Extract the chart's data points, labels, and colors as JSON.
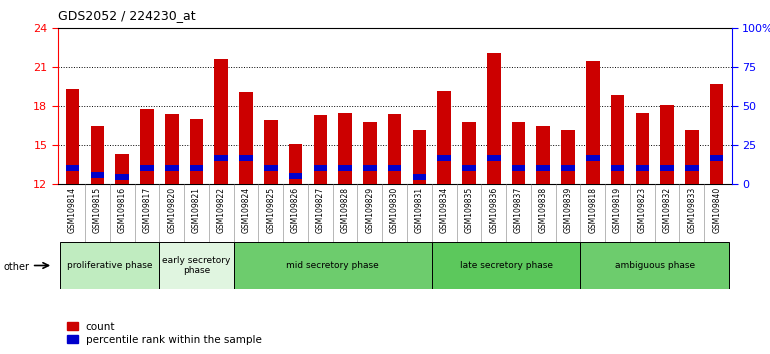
{
  "title": "GDS2052 / 224230_at",
  "samples": [
    "GSM109814",
    "GSM109815",
    "GSM109816",
    "GSM109817",
    "GSM109820",
    "GSM109821",
    "GSM109822",
    "GSM109824",
    "GSM109825",
    "GSM109826",
    "GSM109827",
    "GSM109828",
    "GSM109829",
    "GSM109830",
    "GSM109831",
    "GSM109834",
    "GSM109835",
    "GSM109836",
    "GSM109837",
    "GSM109838",
    "GSM109839",
    "GSM109818",
    "GSM109819",
    "GSM109823",
    "GSM109832",
    "GSM109833",
    "GSM109840"
  ],
  "counts": [
    19.3,
    16.5,
    14.3,
    17.8,
    17.4,
    17.0,
    21.6,
    19.1,
    16.9,
    15.1,
    17.3,
    17.5,
    16.8,
    17.4,
    16.2,
    19.2,
    16.8,
    22.1,
    16.8,
    16.5,
    16.2,
    21.5,
    18.9,
    17.5,
    18.1,
    16.2,
    19.7
  ],
  "blue_bar_bottom": [
    13.0,
    12.5,
    12.3,
    13.0,
    13.0,
    13.0,
    13.8,
    13.8,
    13.0,
    12.4,
    13.0,
    13.0,
    13.0,
    13.0,
    12.3,
    13.8,
    13.0,
    13.8,
    13.0,
    13.0,
    13.0,
    13.8,
    13.0,
    13.0,
    13.0,
    13.0,
    13.8
  ],
  "blue_bar_height": 0.45,
  "phases": [
    {
      "label": "proliferative phase",
      "start": 0,
      "end": 4,
      "color": "#c0ecc0"
    },
    {
      "label": "early secretory\nphase",
      "start": 4,
      "end": 7,
      "color": "#e0f5e0"
    },
    {
      "label": "mid secretory phase",
      "start": 7,
      "end": 15,
      "color": "#6dcc6d"
    },
    {
      "label": "late secretory phase",
      "start": 15,
      "end": 21,
      "color": "#5cc85c"
    },
    {
      "label": "ambiguous phase",
      "start": 21,
      "end": 27,
      "color": "#6dcc6d"
    }
  ],
  "ylim_left": [
    12,
    24
  ],
  "ylim_right": [
    0,
    100
  ],
  "yticks_left": [
    12,
    15,
    18,
    21,
    24
  ],
  "yticks_right": [
    0,
    25,
    50,
    75,
    100
  ],
  "bar_width": 0.55,
  "bar_color_count": "#cc0000",
  "bar_color_percentile": "#0000cc",
  "plot_bg": "white",
  "xtick_bg": "#d8d8d8",
  "legend_items": [
    "count",
    "percentile rank within the sample"
  ]
}
